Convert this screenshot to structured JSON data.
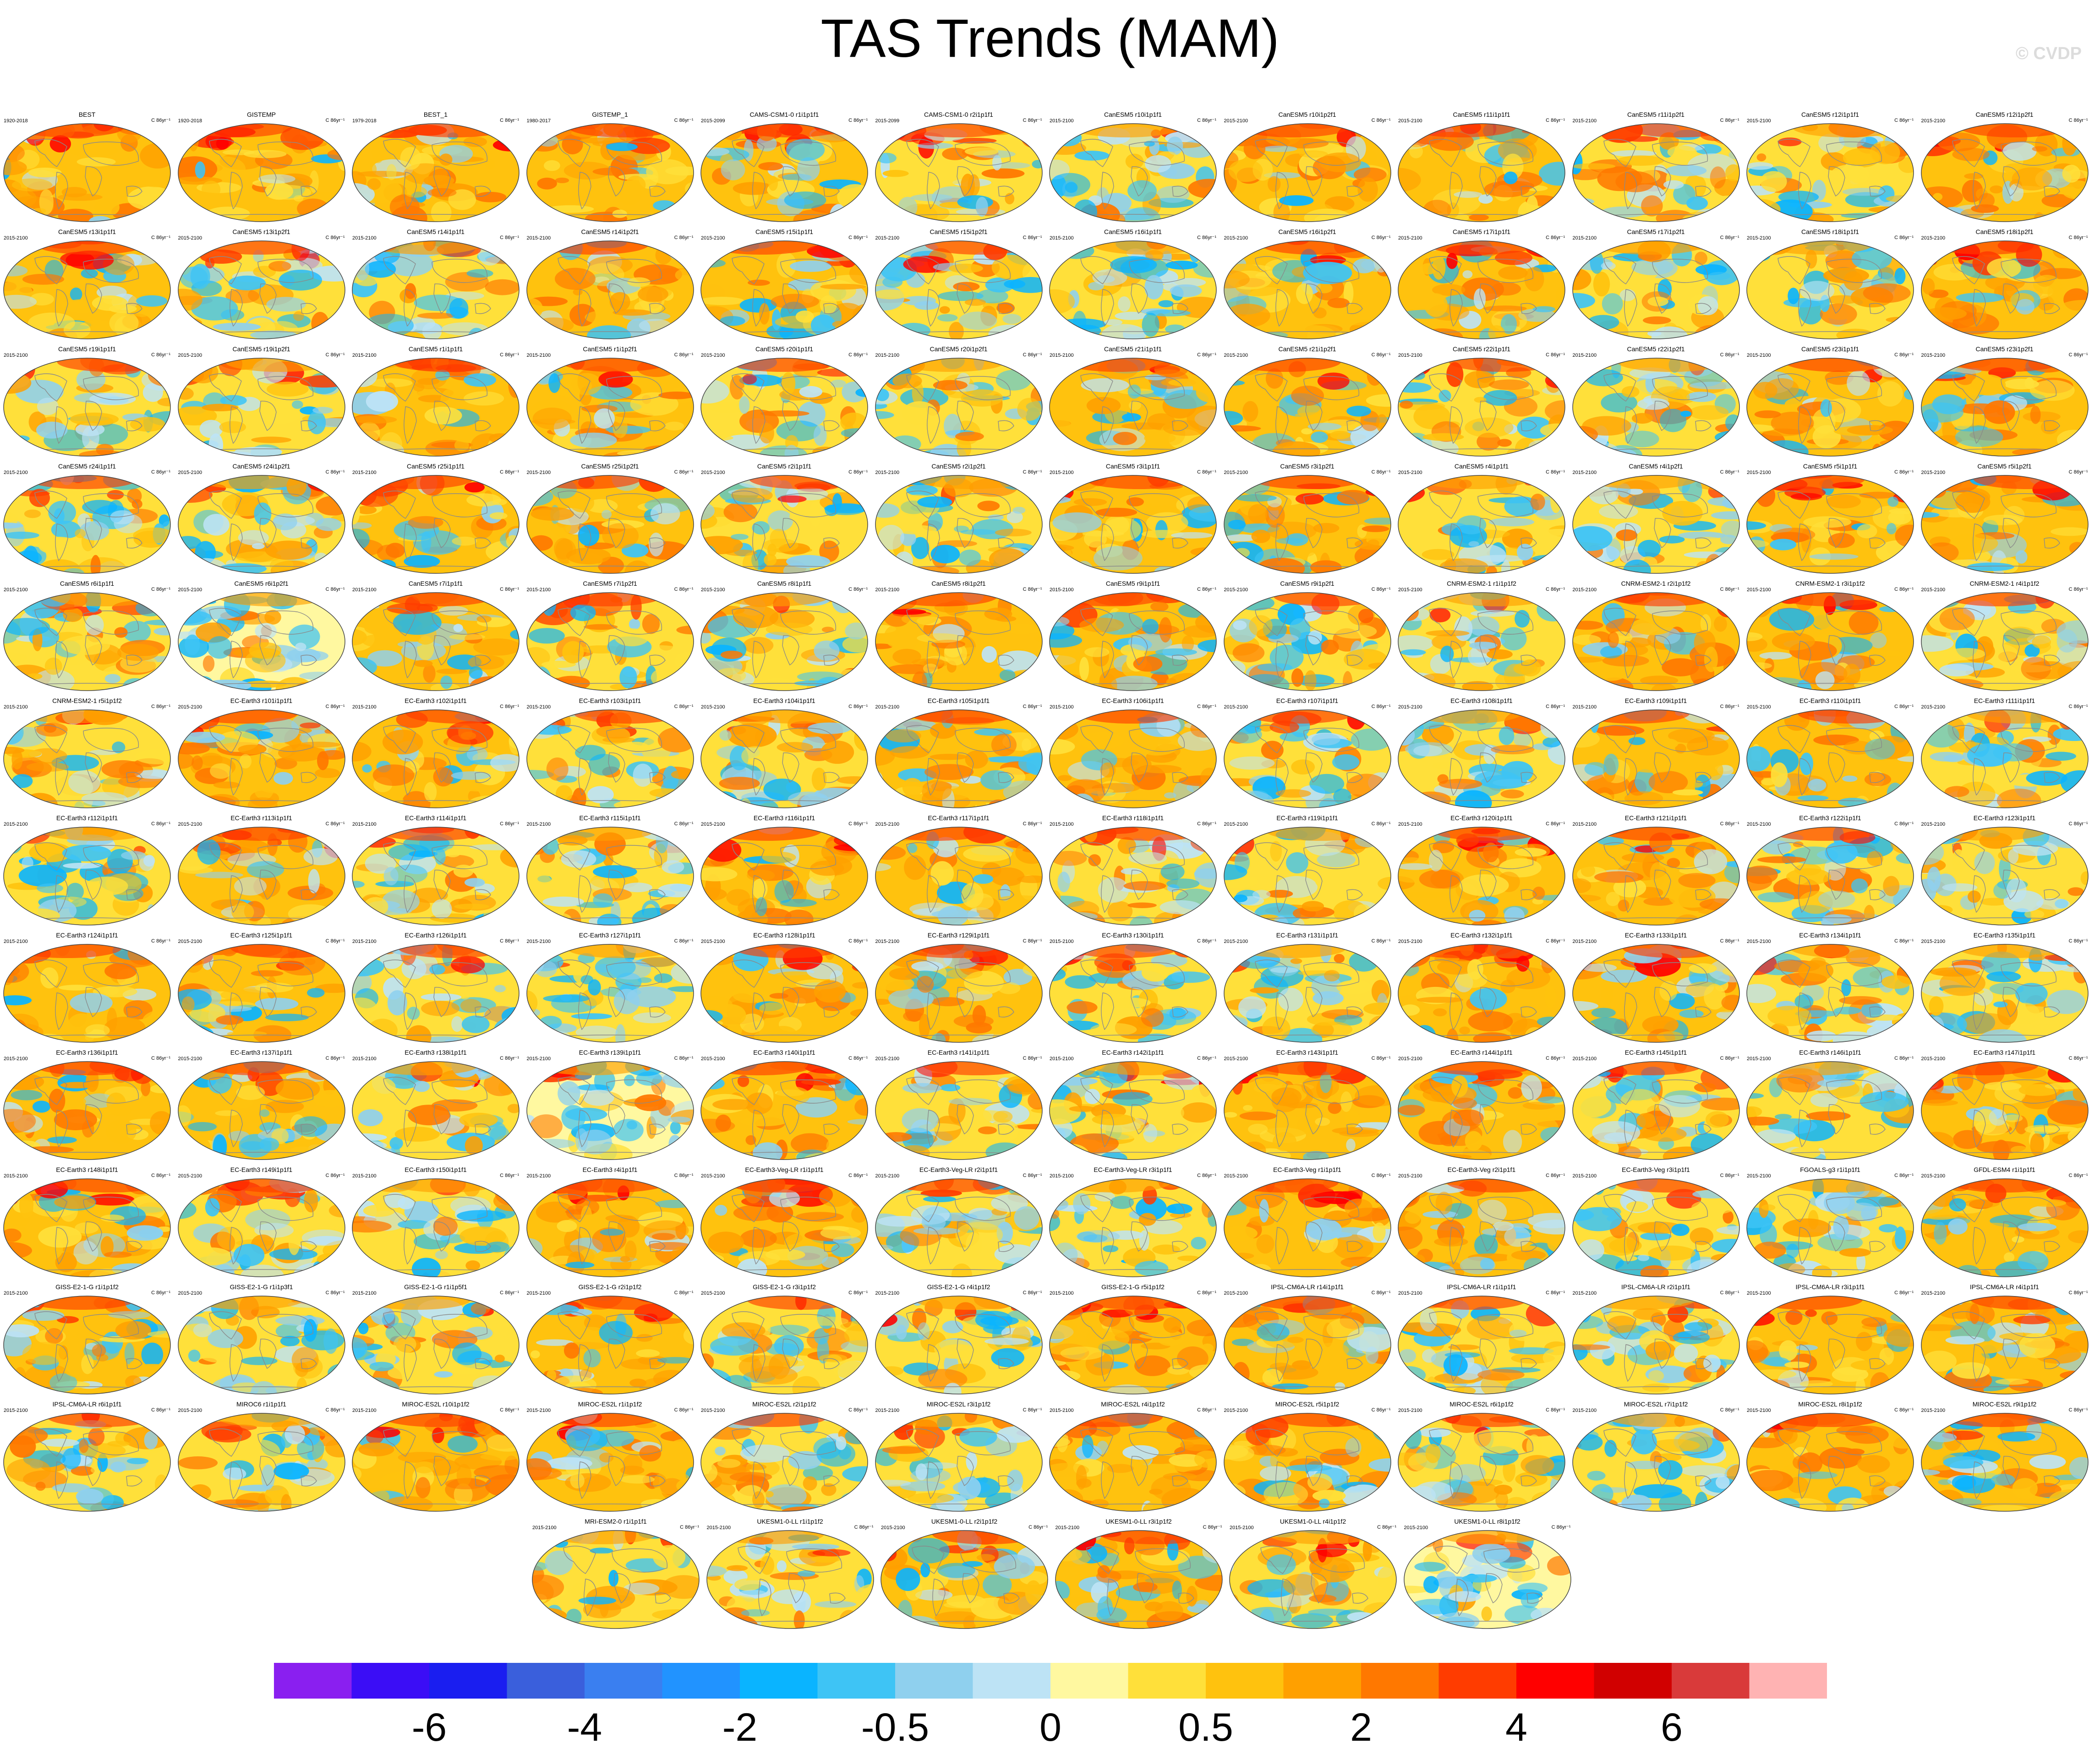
{
  "title": "TAS Trends (MAM)",
  "watermark": "© CVDP",
  "units": "C 86yr⁻¹",
  "colors": {
    "border": "#444444",
    "coast": "#8a8a8a",
    "scale": [
      "#8a1ff0",
      "#3b0df6",
      "#1a1ef0",
      "#3a5fdc",
      "#3a7ff0",
      "#2193ff",
      "#0ab4ff",
      "#3ec4f5",
      "#8fd0ee",
      "#bde3f5",
      "#fff8a0",
      "#ffe03a",
      "#ffc20e",
      "#ffa000",
      "#ff7800",
      "#ff3c00",
      "#ff0000",
      "#d10000",
      "#d93a3a",
      "#ffb3b3"
    ]
  },
  "colorbar_labels": [
    "-6",
    "-4",
    "-2",
    "-0.5",
    "0",
    "0.5",
    "2",
    "4",
    "6"
  ],
  "rows": [
    [
      {
        "title": "BEST",
        "period": "1920-2018"
      },
      {
        "title": "GISTEMP",
        "period": "1920-2018"
      },
      {
        "title": "BEST_1",
        "period": "1979-2018"
      },
      {
        "title": "GISTEMP_1",
        "period": "1980-2017"
      },
      {
        "title": "CAMS-CSM1-0 r1i1p1f1",
        "period": "2015-2099"
      },
      {
        "title": "CAMS-CSM1-0 r2i1p1f1",
        "period": "2015-2099"
      },
      {
        "title": "CanESM5 r10i1p1f1",
        "period": "2015-2100"
      },
      {
        "title": "CanESM5 r10i1p2f1",
        "period": "2015-2100"
      },
      {
        "title": "CanESM5 r11i1p1f1",
        "period": "2015-2100"
      },
      {
        "title": "CanESM5 r11i1p2f1",
        "period": "2015-2100"
      },
      {
        "title": "CanESM5 r12i1p1f1",
        "period": "2015-2100"
      },
      {
        "title": "CanESM5 r12i1p2f1",
        "period": "2015-2100"
      }
    ],
    [
      {
        "title": "CanESM5 r13i1p1f1",
        "period": "2015-2100"
      },
      {
        "title": "CanESM5 r13i1p2f1",
        "period": "2015-2100"
      },
      {
        "title": "CanESM5 r14i1p1f1",
        "period": "2015-2100"
      },
      {
        "title": "CanESM5 r14i1p2f1",
        "period": "2015-2100"
      },
      {
        "title": "CanESM5 r15i1p1f1",
        "period": "2015-2100"
      },
      {
        "title": "CanESM5 r15i1p2f1",
        "period": "2015-2100"
      },
      {
        "title": "CanESM5 r16i1p1f1",
        "period": "2015-2100"
      },
      {
        "title": "CanESM5 r16i1p2f1",
        "period": "2015-2100"
      },
      {
        "title": "CanESM5 r17i1p1f1",
        "period": "2015-2100"
      },
      {
        "title": "CanESM5 r17i1p2f1",
        "period": "2015-2100"
      },
      {
        "title": "CanESM5 r18i1p1f1",
        "period": "2015-2100"
      },
      {
        "title": "CanESM5 r18i1p2f1",
        "period": "2015-2100"
      }
    ],
    [
      {
        "title": "CanESM5 r19i1p1f1",
        "period": "2015-2100"
      },
      {
        "title": "CanESM5 r19i1p2f1",
        "period": "2015-2100"
      },
      {
        "title": "CanESM5 r1i1p1f1",
        "period": "2015-2100"
      },
      {
        "title": "CanESM5 r1i1p2f1",
        "period": "2015-2100"
      },
      {
        "title": "CanESM5 r20i1p1f1",
        "period": "2015-2100"
      },
      {
        "title": "CanESM5 r20i1p2f1",
        "period": "2015-2100"
      },
      {
        "title": "CanESM5 r21i1p1f1",
        "period": "2015-2100"
      },
      {
        "title": "CanESM5 r21i1p2f1",
        "period": "2015-2100"
      },
      {
        "title": "CanESM5 r22i1p1f1",
        "period": "2015-2100"
      },
      {
        "title": "CanESM5 r22i1p2f1",
        "period": "2015-2100"
      },
      {
        "title": "CanESM5 r23i1p1f1",
        "period": "2015-2100"
      },
      {
        "title": "CanESM5 r23i1p2f1",
        "period": "2015-2100"
      }
    ],
    [
      {
        "title": "CanESM5 r24i1p1f1",
        "period": "2015-2100"
      },
      {
        "title": "CanESM5 r24i1p2f1",
        "period": "2015-2100"
      },
      {
        "title": "CanESM5 r25i1p1f1",
        "period": "2015-2100"
      },
      {
        "title": "CanESM5 r25i1p2f1",
        "period": "2015-2100"
      },
      {
        "title": "CanESM5 r2i1p1f1",
        "period": "2015-2100"
      },
      {
        "title": "CanESM5 r2i1p2f1",
        "period": "2015-2100"
      },
      {
        "title": "CanESM5 r3i1p1f1",
        "period": "2015-2100"
      },
      {
        "title": "CanESM5 r3i1p2f1",
        "period": "2015-2100"
      },
      {
        "title": "CanESM5 r4i1p1f1",
        "period": "2015-2100"
      },
      {
        "title": "CanESM5 r4i1p2f1",
        "period": "2015-2100"
      },
      {
        "title": "CanESM5 r5i1p1f1",
        "period": "2015-2100"
      },
      {
        "title": "CanESM5 r5i1p2f1",
        "period": "2015-2100"
      }
    ],
    [
      {
        "title": "CanESM5 r6i1p1f1",
        "period": "2015-2100"
      },
      {
        "title": "CanESM5 r6i1p2f1",
        "period": "2015-2100"
      },
      {
        "title": "CanESM5 r7i1p1f1",
        "period": "2015-2100"
      },
      {
        "title": "CanESM5 r7i1p2f1",
        "period": "2015-2100"
      },
      {
        "title": "CanESM5 r8i1p1f1",
        "period": "2015-2100"
      },
      {
        "title": "CanESM5 r8i1p2f1",
        "period": "2015-2100"
      },
      {
        "title": "CanESM5 r9i1p1f1",
        "period": "2015-2100"
      },
      {
        "title": "CanESM5 r9i1p2f1",
        "period": "2015-2100"
      },
      {
        "title": "CNRM-ESM2-1 r1i1p1f2",
        "period": "2015-2100"
      },
      {
        "title": "CNRM-ESM2-1 r2i1p1f2",
        "period": "2015-2100"
      },
      {
        "title": "CNRM-ESM2-1 r3i1p1f2",
        "period": "2015-2100"
      },
      {
        "title": "CNRM-ESM2-1 r4i1p1f2",
        "period": "2015-2100"
      }
    ],
    [
      {
        "title": "CNRM-ESM2-1 r5i1p1f2",
        "period": "2015-2100"
      },
      {
        "title": "EC-Earth3 r101i1p1f1",
        "period": "2015-2100"
      },
      {
        "title": "EC-Earth3 r102i1p1f1",
        "period": "2015-2100"
      },
      {
        "title": "EC-Earth3 r103i1p1f1",
        "period": "2015-2100"
      },
      {
        "title": "EC-Earth3 r104i1p1f1",
        "period": "2015-2100"
      },
      {
        "title": "EC-Earth3 r105i1p1f1",
        "period": "2015-2100"
      },
      {
        "title": "EC-Earth3 r106i1p1f1",
        "period": "2015-2100"
      },
      {
        "title": "EC-Earth3 r107i1p1f1",
        "period": "2015-2100"
      },
      {
        "title": "EC-Earth3 r108i1p1f1",
        "period": "2015-2100"
      },
      {
        "title": "EC-Earth3 r109i1p1f1",
        "period": "2015-2100"
      },
      {
        "title": "EC-Earth3 r110i1p1f1",
        "period": "2015-2100"
      },
      {
        "title": "EC-Earth3 r111i1p1f1",
        "period": "2015-2100"
      }
    ],
    [
      {
        "title": "EC-Earth3 r112i1p1f1",
        "period": "2015-2100"
      },
      {
        "title": "EC-Earth3 r113i1p1f1",
        "period": "2015-2100"
      },
      {
        "title": "EC-Earth3 r114i1p1f1",
        "period": "2015-2100"
      },
      {
        "title": "EC-Earth3 r115i1p1f1",
        "period": "2015-2100"
      },
      {
        "title": "EC-Earth3 r116i1p1f1",
        "period": "2015-2100"
      },
      {
        "title": "EC-Earth3 r117i1p1f1",
        "period": "2015-2100"
      },
      {
        "title": "EC-Earth3 r118i1p1f1",
        "period": "2015-2100"
      },
      {
        "title": "EC-Earth3 r119i1p1f1",
        "period": "2015-2100"
      },
      {
        "title": "EC-Earth3 r120i1p1f1",
        "period": "2015-2100"
      },
      {
        "title": "EC-Earth3 r121i1p1f1",
        "period": "2015-2100"
      },
      {
        "title": "EC-Earth3 r122i1p1f1",
        "period": "2015-2100"
      },
      {
        "title": "EC-Earth3 r123i1p1f1",
        "period": "2015-2100"
      }
    ],
    [
      {
        "title": "EC-Earth3 r124i1p1f1",
        "period": "2015-2100"
      },
      {
        "title": "EC-Earth3 r125i1p1f1",
        "period": "2015-2100"
      },
      {
        "title": "EC-Earth3 r126i1p1f1",
        "period": "2015-2100"
      },
      {
        "title": "EC-Earth3 r127i1p1f1",
        "period": "2015-2100"
      },
      {
        "title": "EC-Earth3 r128i1p1f1",
        "period": "2015-2100"
      },
      {
        "title": "EC-Earth3 r129i1p1f1",
        "period": "2015-2100"
      },
      {
        "title": "EC-Earth3 r130i1p1f1",
        "period": "2015-2100"
      },
      {
        "title": "EC-Earth3 r131i1p1f1",
        "period": "2015-2100"
      },
      {
        "title": "EC-Earth3 r132i1p1f1",
        "period": "2015-2100"
      },
      {
        "title": "EC-Earth3 r133i1p1f1",
        "period": "2015-2100"
      },
      {
        "title": "EC-Earth3 r134i1p1f1",
        "period": "2015-2100"
      },
      {
        "title": "EC-Earth3 r135i1p1f1",
        "period": "2015-2100"
      }
    ],
    [
      {
        "title": "EC-Earth3 r136i1p1f1",
        "period": "2015-2100"
      },
      {
        "title": "EC-Earth3 r137i1p1f1",
        "period": "2015-2100"
      },
      {
        "title": "EC-Earth3 r138i1p1f1",
        "period": "2015-2100"
      },
      {
        "title": "EC-Earth3 r139i1p1f1",
        "period": "2015-2100"
      },
      {
        "title": "EC-Earth3 r140i1p1f1",
        "period": "2015-2100"
      },
      {
        "title": "EC-Earth3 r141i1p1f1",
        "period": "2015-2100"
      },
      {
        "title": "EC-Earth3 r142i1p1f1",
        "period": "2015-2100"
      },
      {
        "title": "EC-Earth3 r143i1p1f1",
        "period": "2015-2100"
      },
      {
        "title": "EC-Earth3 r144i1p1f1",
        "period": "2015-2100"
      },
      {
        "title": "EC-Earth3 r145i1p1f1",
        "period": "2015-2100"
      },
      {
        "title": "EC-Earth3 r146i1p1f1",
        "period": "2015-2100"
      },
      {
        "title": "EC-Earth3 r147i1p1f1",
        "period": "2015-2100"
      }
    ],
    [
      {
        "title": "EC-Earth3 r148i1p1f1",
        "period": "2015-2100"
      },
      {
        "title": "EC-Earth3 r149i1p1f1",
        "period": "2015-2100"
      },
      {
        "title": "EC-Earth3 r150i1p1f1",
        "period": "2015-2100"
      },
      {
        "title": "EC-Earth3 r4i1p1f1",
        "period": "2015-2100"
      },
      {
        "title": "EC-Earth3-Veg-LR r1i1p1f1",
        "period": "2015-2100"
      },
      {
        "title": "EC-Earth3-Veg-LR r2i1p1f1",
        "period": "2015-2100"
      },
      {
        "title": "EC-Earth3-Veg-LR r3i1p1f1",
        "period": "2015-2100"
      },
      {
        "title": "EC-Earth3-Veg r1i1p1f1",
        "period": "2015-2100"
      },
      {
        "title": "EC-Earth3-Veg r2i1p1f1",
        "period": "2015-2100"
      },
      {
        "title": "EC-Earth3-Veg r3i1p1f1",
        "period": "2015-2100"
      },
      {
        "title": "FGOALS-g3 r1i1p1f1",
        "period": "2015-2100"
      },
      {
        "title": "GFDL-ESM4 r1i1p1f1",
        "period": "2015-2100"
      }
    ],
    [
      {
        "title": "GISS-E2-1-G r1i1p1f2",
        "period": "2015-2100"
      },
      {
        "title": "GISS-E2-1-G r1i1p3f1",
        "period": "2015-2100"
      },
      {
        "title": "GISS-E2-1-G r1i1p5f1",
        "period": "2015-2100"
      },
      {
        "title": "GISS-E2-1-G r2i1p1f2",
        "period": "2015-2100"
      },
      {
        "title": "GISS-E2-1-G r3i1p1f2",
        "period": "2015-2100"
      },
      {
        "title": "GISS-E2-1-G r4i1p1f2",
        "period": "2015-2100"
      },
      {
        "title": "GISS-E2-1-G r5i1p1f2",
        "period": "2015-2100"
      },
      {
        "title": "IPSL-CM6A-LR r14i1p1f1",
        "period": "2015-2100"
      },
      {
        "title": "IPSL-CM6A-LR r1i1p1f1",
        "period": "2015-2100"
      },
      {
        "title": "IPSL-CM6A-LR r2i1p1f1",
        "period": "2015-2100"
      },
      {
        "title": "IPSL-CM6A-LR r3i1p1f1",
        "period": "2015-2100"
      },
      {
        "title": "IPSL-CM6A-LR r4i1p1f1",
        "period": "2015-2100"
      }
    ],
    [
      {
        "title": "IPSL-CM6A-LR r6i1p1f1",
        "period": "2015-2100"
      },
      {
        "title": "MIROC6 r1i1p1f1",
        "period": "2015-2100"
      },
      {
        "title": "MIROC-ES2L r10i1p1f2",
        "period": "2015-2100"
      },
      {
        "title": "MIROC-ES2L r1i1p1f2",
        "period": "2015-2100"
      },
      {
        "title": "MIROC-ES2L r2i1p1f2",
        "period": "2015-2100"
      },
      {
        "title": "MIROC-ES2L r3i1p1f2",
        "period": "2015-2100"
      },
      {
        "title": "MIROC-ES2L r4i1p1f2",
        "period": "2015-2100"
      },
      {
        "title": "MIROC-ES2L r5i1p1f2",
        "period": "2015-2100"
      },
      {
        "title": "MIROC-ES2L r6i1p1f2",
        "period": "2015-2100"
      },
      {
        "title": "MIROC-ES2L r7i1p1f2",
        "period": "2015-2100"
      },
      {
        "title": "MIROC-ES2L r8i1p1f2",
        "period": "2015-2100"
      },
      {
        "title": "MIROC-ES2L r9i1p1f2",
        "period": "2015-2100"
      }
    ],
    [
      {
        "title": "MRI-ESM2-0 r1i1p1f1",
        "period": "2015-2100"
      },
      {
        "title": "UKESM1-0-LL r1i1p1f2",
        "period": "2015-2100"
      },
      {
        "title": "UKESM1-0-LL r2i1p1f2",
        "period": "2015-2100"
      },
      {
        "title": "UKESM1-0-LL r3i1p1f2",
        "period": "2015-2100"
      },
      {
        "title": "UKESM1-0-LL r4i1p1f2",
        "period": "2015-2100"
      },
      {
        "title": "UKESM1-0-LL r8i1p1f2",
        "period": "2015-2100"
      }
    ]
  ]
}
